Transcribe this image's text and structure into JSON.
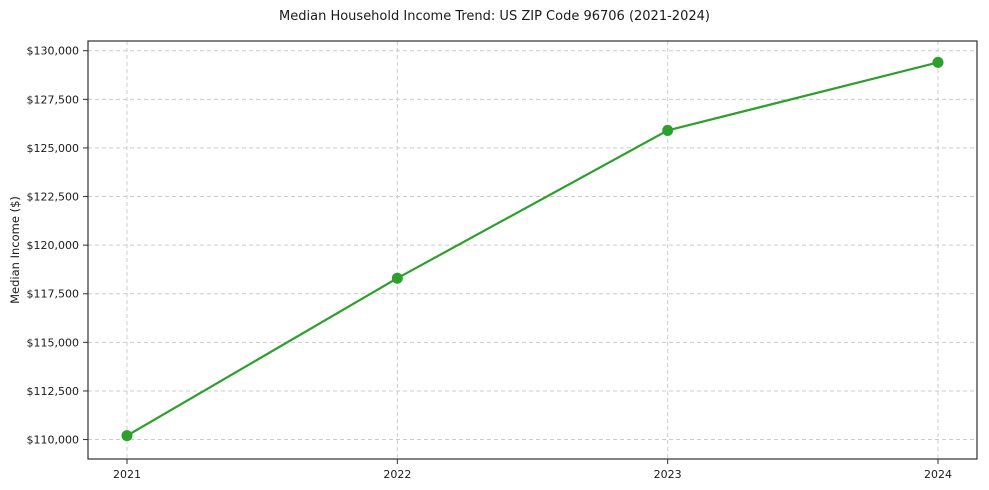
{
  "chart_data": {
    "type": "line",
    "title": "Median Household Income Trend: US ZIP Code 96706 (2021-2024)",
    "xlabel": "",
    "ylabel": "Median Income ($)",
    "categories": [
      "2021",
      "2022",
      "2023",
      "2024"
    ],
    "series": [
      {
        "name": "Median Household Income",
        "values": [
          110200,
          118300,
          125900,
          129400
        ]
      }
    ],
    "y_ticks": [
      110000,
      112500,
      115000,
      117500,
      120000,
      122500,
      125000,
      127500,
      130000
    ],
    "y_tick_labels": [
      "$110,000",
      "$112,500",
      "$115,000",
      "$117,500",
      "$120,000",
      "$122,500",
      "$125,000",
      "$127,500",
      "$130,000"
    ],
    "ylim": [
      109000,
      130500
    ],
    "grid": "dashed both axes",
    "legend": "none",
    "line_color": "#2ca02c",
    "marker_color": "#2ca02c",
    "grid_color": "#cccccc",
    "axis_color": "#2f2f2f",
    "text_color": "#1a1a1a"
  }
}
